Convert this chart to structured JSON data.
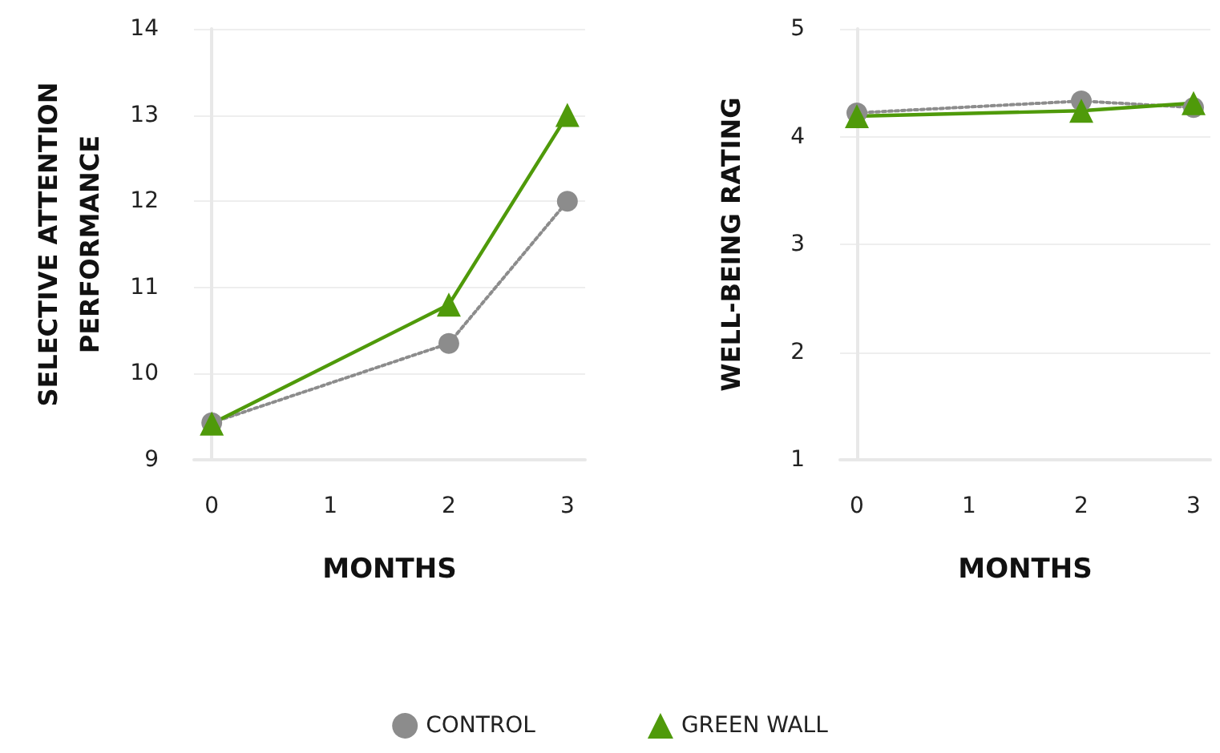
{
  "chart_data": [
    {
      "type": "line",
      "xlabel": "MONTHS",
      "ylabel": "SELECTIVE ATTENTION PERFORMANCE",
      "x": [
        0,
        2,
        3
      ],
      "xlim": [
        -0.15,
        3.15
      ],
      "xticks": [
        0,
        1,
        2,
        3
      ],
      "ylim": [
        9,
        14
      ],
      "yticks": [
        9,
        10,
        11,
        12,
        13,
        14
      ],
      "grid": "y",
      "legend": "bottom",
      "series": [
        {
          "name": "CONTROL",
          "color": "#8c8c8c",
          "values": [
            9.43,
            10.35,
            12.0
          ],
          "marker": "circle",
          "line_style": "dotted"
        },
        {
          "name": "GREEN WALL",
          "color": "#4f9a0a",
          "values": [
            9.42,
            10.8,
            13.0
          ],
          "marker": "triangle",
          "line_style": "solid"
        }
      ]
    },
    {
      "type": "line",
      "xlabel": "MONTHS",
      "ylabel": "WELL-BEING RATING",
      "x": [
        0,
        2,
        3
      ],
      "xlim": [
        -0.15,
        3.15
      ],
      "xticks": [
        0,
        1,
        2,
        3
      ],
      "ylim": [
        1,
        5
      ],
      "yticks": [
        1,
        2,
        3,
        4,
        5
      ],
      "grid": "y",
      "series": [
        {
          "color": "#8c8c8c",
          "values": [
            4.22,
            4.33,
            4.27
          ],
          "marker": "circle",
          "line_style": "dotted"
        },
        {
          "color": "#4f9a0a",
          "values": [
            4.19,
            4.24,
            4.31
          ],
          "marker": "triangle",
          "line_style": "solid"
        }
      ]
    }
  ]
}
